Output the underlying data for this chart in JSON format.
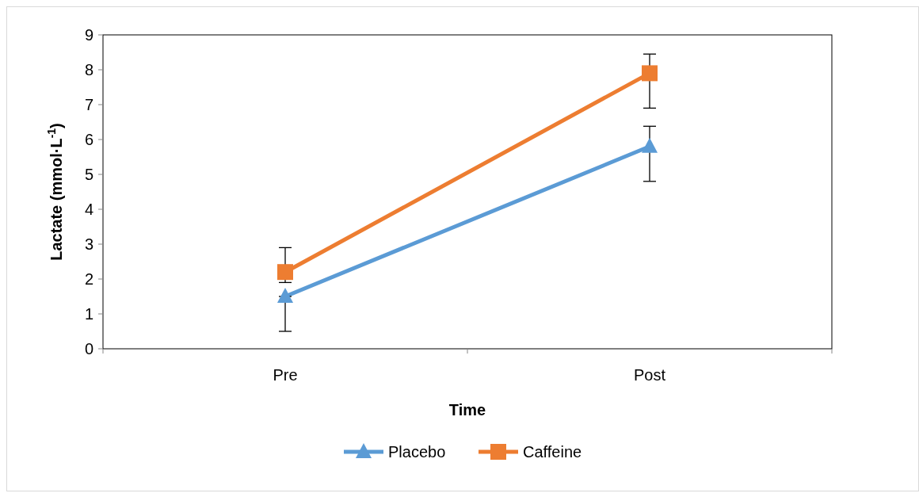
{
  "chart_data": {
    "type": "line",
    "xlabel": "Time",
    "ylabel": "Lactate (mmol·L$^{-1}$)",
    "categories": [
      "Pre",
      "Post"
    ],
    "series": [
      {
        "name": "Placebo",
        "color": "#5b9bd5",
        "marker": "triangle",
        "values": [
          1.5,
          5.8
        ],
        "errors": [
          [
            0.5,
            1.5
          ],
          [
            4.8,
            6.38
          ]
        ]
      },
      {
        "name": "Caffeine",
        "color": "#ed7d31",
        "marker": "square",
        "values": [
          2.2,
          7.9
        ],
        "errors": [
          [
            1.9,
            2.9
          ],
          [
            6.9,
            8.45
          ]
        ]
      }
    ],
    "ylim": [
      0,
      9
    ],
    "yticks": [
      0,
      1,
      2,
      3,
      4,
      5,
      6,
      7,
      8,
      9
    ],
    "legend": "bottom",
    "grid": false
  }
}
